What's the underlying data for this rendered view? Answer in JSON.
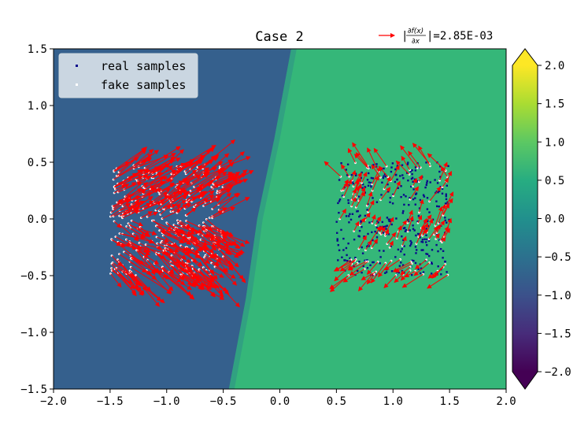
{
  "chart_data": {
    "type": "scatter",
    "title": "Case 2",
    "xlim": [
      -2.0,
      2.0
    ],
    "ylim": [
      -1.5,
      1.5
    ],
    "x_ticks": [
      "−2.0",
      "−1.5",
      "−1.0",
      "−0.5",
      "0.0",
      "0.5",
      "1.0",
      "1.5",
      "2.0"
    ],
    "y_ticks": [
      "−1.5",
      "−1.0",
      "−0.5",
      "0.0",
      "0.5",
      "1.0",
      "1.5"
    ],
    "x_tick_values": [
      -2.0,
      -1.5,
      -1.0,
      -0.5,
      0.0,
      0.5,
      1.0,
      1.5,
      2.0
    ],
    "y_tick_values": [
      -1.5,
      -1.0,
      -0.5,
      0.0,
      0.5,
      1.0,
      1.5
    ],
    "background": {
      "description_key": "discriminator_field",
      "left_region_value": -0.6,
      "right_region_value": 0.65,
      "boundary_x_at_y": [
        [
          -0.45,
          -1.5
        ],
        [
          -0.3,
          -0.7
        ],
        [
          -0.2,
          0.0
        ],
        [
          -0.05,
          0.7
        ],
        [
          0.1,
          1.5
        ]
      ],
      "left_color": "#35608d",
      "right_color": "#35b779"
    },
    "colorbar": {
      "min": -2.0,
      "max": 2.0,
      "ticks": [
        "−2.0",
        "−1.5",
        "−1.0",
        "−0.5",
        "0.0",
        "0.5",
        "1.0",
        "1.5",
        "2.0"
      ],
      "tick_values": [
        -2.0,
        -1.5,
        -1.0,
        -0.5,
        0.0,
        0.5,
        1.0,
        1.5,
        2.0
      ],
      "extend": "both",
      "colormap": "viridis"
    },
    "legend": {
      "position": "upper-left",
      "entries": [
        {
          "label": "real samples",
          "color": "#0a0a8c"
        },
        {
          "label": "fake samples",
          "color": "#ffffff"
        }
      ]
    },
    "series": [
      {
        "name": "real samples",
        "color": "#0a0a8c",
        "distribution": "uniform",
        "x_range": [
          0.5,
          1.5
        ],
        "y_range": [
          -0.5,
          0.5
        ],
        "count": 360
      },
      {
        "name": "fake samples",
        "color": "#ffffff",
        "distribution": "uniform",
        "clusters": [
          {
            "x_range": [
              -1.5,
              -0.5
            ],
            "y_range": [
              -0.5,
              0.5
            ],
            "count": 380
          },
          {
            "x_range": [
              0.5,
              1.5
            ],
            "y_range": [
              -0.5,
              0.5
            ],
            "count": 120
          }
        ]
      }
    ],
    "gradient_arrows": {
      "color": "#ff0000"
    },
    "quiver_key": {
      "label_suffix": "|=2.85E-03",
      "numerator": "∂f(x)",
      "denominator": "∂x"
    }
  }
}
